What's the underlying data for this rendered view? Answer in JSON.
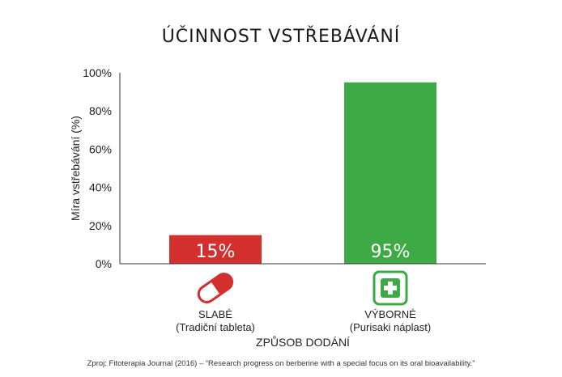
{
  "chart_data": {
    "type": "bar",
    "title": "ÚČINNOST VSTŘEBÁVÁNÍ",
    "ylabel": "Míra vstřebávání (%)",
    "xlabel": "ZPŮSOB DODÁNÍ",
    "ylim": [
      0,
      100
    ],
    "yticks": [
      "0%",
      "20%",
      "40%",
      "60%",
      "80%",
      "100%"
    ],
    "categories": [
      {
        "line1": "SLABÉ",
        "line2": "(Tradiční tableta)",
        "icon": "pill-capsule-icon"
      },
      {
        "line1": "VÝBORNÉ",
        "line2": "(Purisaki náplast)",
        "icon": "medical-cross-patch-icon"
      }
    ],
    "values": [
      15,
      95
    ],
    "value_labels": [
      "15%",
      "95%"
    ],
    "colors": [
      "#d42f2f",
      "#3daa45"
    ],
    "grid": false,
    "source": "Zproj: Fitoterapia Journal (2016) – “Research progress on berberine with a special focus on its oral bioavailability.”"
  }
}
